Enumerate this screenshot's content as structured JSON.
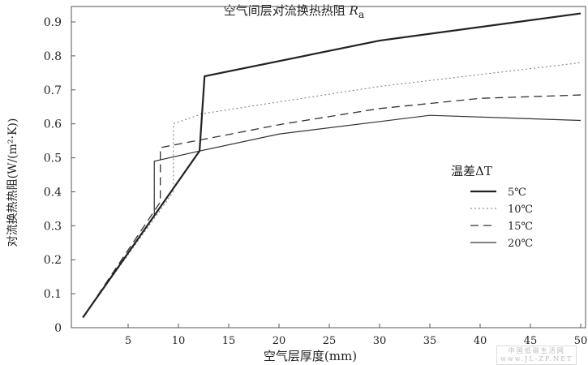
{
  "chart_data": {
    "type": "line",
    "title": "空气间层对流换热热阻",
    "title_symbol": "R",
    "title_subscript": "a",
    "xlabel": "空气层厚度(mm)",
    "ylabel": "对流换热热阻(W/(m²·K))",
    "xlim": [
      0,
      50
    ],
    "ylim": [
      0,
      0.9
    ],
    "xticks": [
      5,
      10,
      15,
      20,
      25,
      30,
      35,
      40,
      45,
      50
    ],
    "yticks": [
      0,
      0.1,
      0.2,
      0.3,
      0.4,
      0.5,
      0.6,
      0.7,
      0.8,
      0.9
    ],
    "grid": false,
    "legend": {
      "title": "温差ΔT",
      "placement": "right"
    },
    "series": [
      {
        "name": "5℃",
        "style": "solid-thick",
        "x": [
          0.5,
          12.1,
          12.6,
          30,
          50
        ],
        "y": [
          0.03,
          0.52,
          0.74,
          0.845,
          0.925
        ]
      },
      {
        "name": "10℃",
        "style": "dotted",
        "x": [
          0.5,
          9.5,
          9.5,
          12.4,
          30,
          50
        ],
        "y": [
          0.03,
          0.4,
          0.6,
          0.63,
          0.71,
          0.78
        ]
      },
      {
        "name": "15℃",
        "style": "dashed",
        "x": [
          0.5,
          8.2,
          8.2,
          20.5,
          30,
          40,
          50
        ],
        "y": [
          0.03,
          0.37,
          0.53,
          0.6,
          0.645,
          0.675,
          0.685
        ]
      },
      {
        "name": "20℃",
        "style": "solid-thin",
        "x": [
          0.5,
          7.6,
          7.6,
          12.1,
          20,
          35,
          50
        ],
        "y": [
          0.03,
          0.33,
          0.49,
          0.52,
          0.57,
          0.625,
          0.61
        ]
      }
    ]
  },
  "watermark": {
    "line1": "中国低碳生活网",
    "line2": "www.JL-ZP.NET"
  }
}
